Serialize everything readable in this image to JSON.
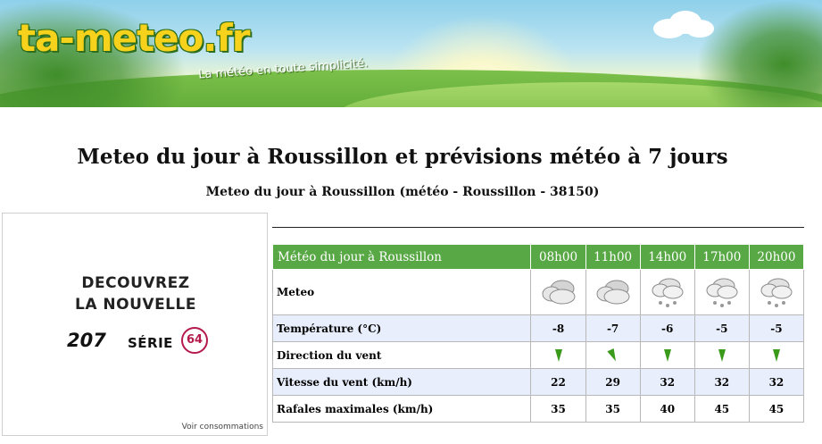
{
  "header": {
    "logo_text": "ta-meteo.fr",
    "tagline": "La météo en toute simplicité."
  },
  "page_title": "Meteo du jour à Roussillon et prévisions météo à 7 jours",
  "subtitle": "Meteo du jour à Roussillon (météo - Roussillon - 38150)",
  "ad": {
    "line1": "DECOUVREZ",
    "line2": "LA NOUVELLE",
    "model": "207",
    "serie": "SÉRIE",
    "badge": "64",
    "footer_link": "Voir consommations"
  },
  "forecast": {
    "header_label": "Météo du jour à Roussillon",
    "hours": [
      "08h00",
      "11h00",
      "14h00",
      "17h00",
      "20h00"
    ],
    "rows": {
      "meteo": {
        "label": "Meteo",
        "icons": [
          "cloudy-icon",
          "cloudy-icon",
          "snow-shower-icon",
          "snow-shower-icon",
          "snow-shower-icon"
        ]
      },
      "temperature": {
        "label": "Température (°C)",
        "values": [
          "-8",
          "-7",
          "-6",
          "-5",
          "-5"
        ]
      },
      "wind_direction": {
        "label": "Direction du vent",
        "icons": [
          "wind-arrow-icon",
          "wind-arrow-icon",
          "wind-arrow-icon",
          "wind-arrow-icon",
          "wind-arrow-icon"
        ]
      },
      "wind_speed": {
        "label": "Vitesse du vent (km/h)",
        "values": [
          "22",
          "29",
          "32",
          "32",
          "32"
        ]
      },
      "gusts": {
        "label": "Rafales maximales (km/h)",
        "values": [
          "35",
          "35",
          "40",
          "45",
          "45"
        ]
      }
    }
  },
  "colors": {
    "header_green": "#58a845",
    "row_alt": "#e8eefc",
    "arrow_green": "#3a9a1a",
    "ad_badge": "#b51a4c"
  }
}
